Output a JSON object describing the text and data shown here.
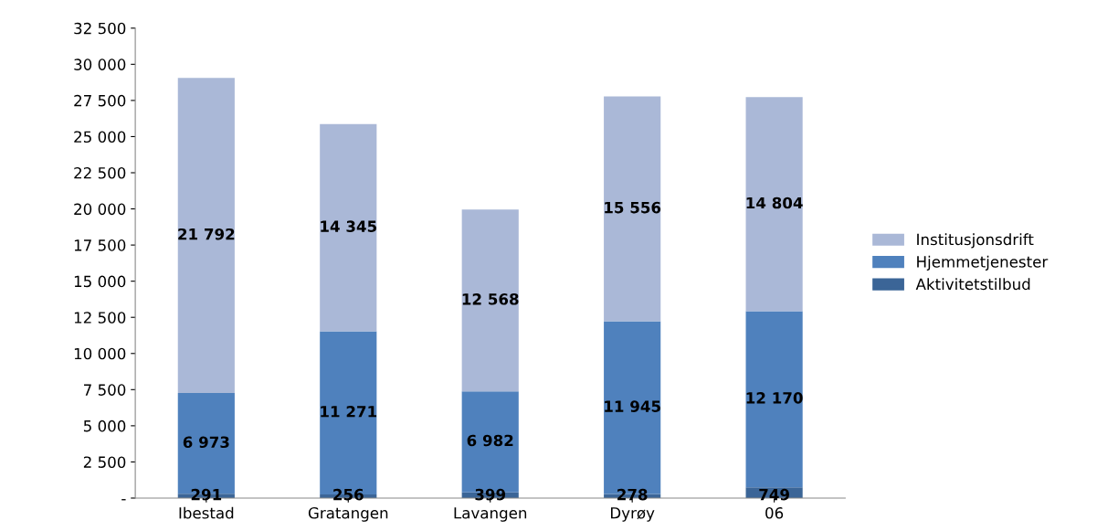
{
  "chart_data": {
    "type": "bar",
    "stacked": true,
    "categories": [
      "Ibestad",
      "Gratangen",
      "Lavangen",
      "Dyrøy",
      "06"
    ],
    "series": [
      {
        "name": "Aktivitetstilbud",
        "color": "#3b6597",
        "values": [
          291,
          256,
          399,
          278,
          749
        ],
        "value_labels": [
          "291",
          "256",
          "399",
          "278",
          "749"
        ]
      },
      {
        "name": "Hjemmetjenester",
        "color": "#4f81bd",
        "values": [
          6973,
          11271,
          6982,
          11945,
          12170
        ],
        "value_labels": [
          "6 973",
          "11 271",
          "6 982",
          "11 945",
          "12 170"
        ]
      },
      {
        "name": "Institusjonsdrift",
        "color": "#aab8d7",
        "values": [
          21792,
          14345,
          12568,
          15556,
          14804
        ],
        "value_labels": [
          "21 792",
          "14 345",
          "12 568",
          "15 556",
          "14 804"
        ]
      }
    ],
    "ylim": [
      0,
      32500
    ],
    "yticks": [
      {
        "value": 0,
        "label": "-"
      },
      {
        "value": 2500,
        "label": "2 500"
      },
      {
        "value": 5000,
        "label": "5 000"
      },
      {
        "value": 7500,
        "label": "7 500"
      },
      {
        "value": 10000,
        "label": "10 000"
      },
      {
        "value": 12500,
        "label": "12 500"
      },
      {
        "value": 15000,
        "label": "15 000"
      },
      {
        "value": 17500,
        "label": "17 500"
      },
      {
        "value": 20000,
        "label": "20 000"
      },
      {
        "value": 22500,
        "label": "22 500"
      },
      {
        "value": 25000,
        "label": "25 000"
      },
      {
        "value": 27500,
        "label": "27 500"
      },
      {
        "value": 30000,
        "label": "30 000"
      },
      {
        "value": 32500,
        "label": "32 500"
      }
    ],
    "grid": false,
    "legend": "right"
  }
}
